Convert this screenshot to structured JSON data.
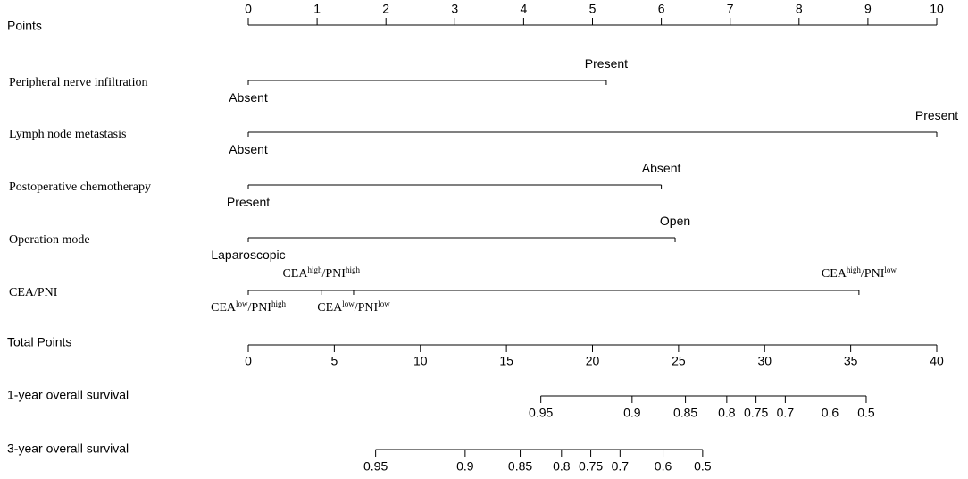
{
  "chart_data": {
    "type": "nomogram",
    "points_axis": {
      "label": "Points",
      "xlim": [
        0,
        10
      ],
      "xticks": [
        0,
        1,
        2,
        3,
        4,
        5,
        6,
        7,
        8,
        9,
        10
      ]
    },
    "predictors": [
      {
        "name": "Peripheral nerve infiltration",
        "levels": [
          {
            "label": [
              "Absent"
            ],
            "value": 0,
            "position": "below"
          },
          {
            "label": [
              "Present"
            ],
            "value": 5.2,
            "position": "above"
          }
        ]
      },
      {
        "name": "Lymph node metastasis",
        "levels": [
          {
            "label": [
              "Absent"
            ],
            "value": 0,
            "position": "below"
          },
          {
            "label": [
              "Present"
            ],
            "value": 10,
            "position": "above"
          }
        ]
      },
      {
        "name": "Postoperative chemotherapy",
        "levels": [
          {
            "label": [
              "Present"
            ],
            "value": 0,
            "position": "below"
          },
          {
            "label": [
              "Absent"
            ],
            "value": 6.0,
            "position": "above"
          }
        ]
      },
      {
        "name": "Operation mode",
        "levels": [
          {
            "label": [
              "Laparoscopic"
            ],
            "value": 0,
            "position": "below"
          },
          {
            "label": [
              "Open"
            ],
            "value": 6.2,
            "position": "above"
          }
        ]
      },
      {
        "name": "CEA/PNI",
        "levels": [
          {
            "label": [
              "CEA",
              "low",
              "/PNI",
              "high"
            ],
            "value": 0,
            "position": "below"
          },
          {
            "label": [
              "CEA",
              "high",
              "/PNI",
              "high"
            ],
            "value": 1.06,
            "position": "above"
          },
          {
            "label": [
              "CEA",
              "low",
              "/PNI",
              "low"
            ],
            "value": 1.53,
            "position": "below"
          },
          {
            "label": [
              "CEA",
              "high",
              "/PNI",
              "low"
            ],
            "value": 8.87,
            "position": "above"
          }
        ]
      }
    ],
    "total_axis": {
      "label": "Total Points",
      "xlim": [
        0,
        40
      ],
      "xticks": [
        0,
        5,
        10,
        15,
        20,
        25,
        30,
        35,
        40
      ]
    },
    "survival": [
      {
        "name": "1-year overall survival",
        "ticks": [
          {
            "value": 0.95,
            "points": 17.0
          },
          {
            "value": 0.9,
            "points": 22.3
          },
          {
            "value": 0.85,
            "points": 25.4
          },
          {
            "value": 0.8,
            "points": 27.8
          },
          {
            "value": 0.75,
            "points": 29.5
          },
          {
            "value": 0.7,
            "points": 31.2
          },
          {
            "value": 0.6,
            "points": 33.8
          },
          {
            "value": 0.5,
            "points": 35.9
          }
        ]
      },
      {
        "name": "3-year overall survival",
        "ticks": [
          {
            "value": 0.95,
            "points": 7.4
          },
          {
            "value": 0.9,
            "points": 12.6
          },
          {
            "value": 0.85,
            "points": 15.8
          },
          {
            "value": 0.8,
            "points": 18.2
          },
          {
            "value": 0.75,
            "points": 19.9
          },
          {
            "value": 0.7,
            "points": 21.6
          },
          {
            "value": 0.6,
            "points": 24.1
          },
          {
            "value": 0.5,
            "points": 26.4
          }
        ]
      }
    ]
  }
}
